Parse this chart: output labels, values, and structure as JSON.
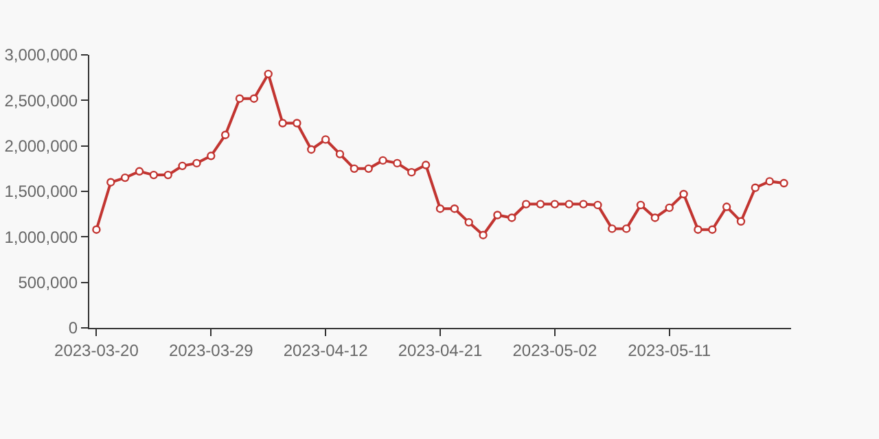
{
  "chart_data": {
    "type": "line",
    "categories": [
      "2023-03-20",
      null,
      null,
      null,
      null,
      null,
      null,
      null,
      "2023-03-29",
      null,
      null,
      null,
      null,
      null,
      null,
      null,
      "2023-04-12",
      null,
      null,
      null,
      null,
      null,
      null,
      null,
      "2023-04-21",
      null,
      null,
      null,
      null,
      null,
      null,
      null,
      "2023-05-02",
      null,
      null,
      null,
      null,
      null,
      null,
      null,
      "2023-05-11",
      null,
      null,
      null,
      null,
      null,
      null,
      null,
      null
    ],
    "series": [
      {
        "color": "#c23531",
        "values": [
          1080000,
          1600000,
          1650000,
          1720000,
          1680000,
          1680000,
          1780000,
          1810000,
          1890000,
          2120000,
          2520000,
          2520000,
          2790000,
          2250000,
          2250000,
          1960000,
          2070000,
          1910000,
          1750000,
          1750000,
          1840000,
          1810000,
          1710000,
          1790000,
          1310000,
          1310000,
          1160000,
          1020000,
          1240000,
          1210000,
          1360000,
          1360000,
          1360000,
          1360000,
          1360000,
          1350000,
          1090000,
          1090000,
          1350000,
          1210000,
          1320000,
          1470000,
          1080000,
          1080000,
          1330000,
          1170000,
          1540000,
          1610000,
          1590000
        ]
      }
    ],
    "ylim": [
      0,
      3000000
    ],
    "yticks": [
      0,
      {
        "value": 500000,
        "label": "500,000"
      },
      {
        "value": 1000000,
        "label": "1,000,000"
      },
      {
        "value": 1500000,
        "label": "1,500,000"
      },
      {
        "value": 2000000,
        "label": "2,000,000"
      },
      {
        "value": 2500000,
        "label": "2,500,000"
      },
      {
        "value": 3000000,
        "label": "3,000,000"
      }
    ],
    "grid": false,
    "marker": "circle",
    "line_style": "solid"
  }
}
